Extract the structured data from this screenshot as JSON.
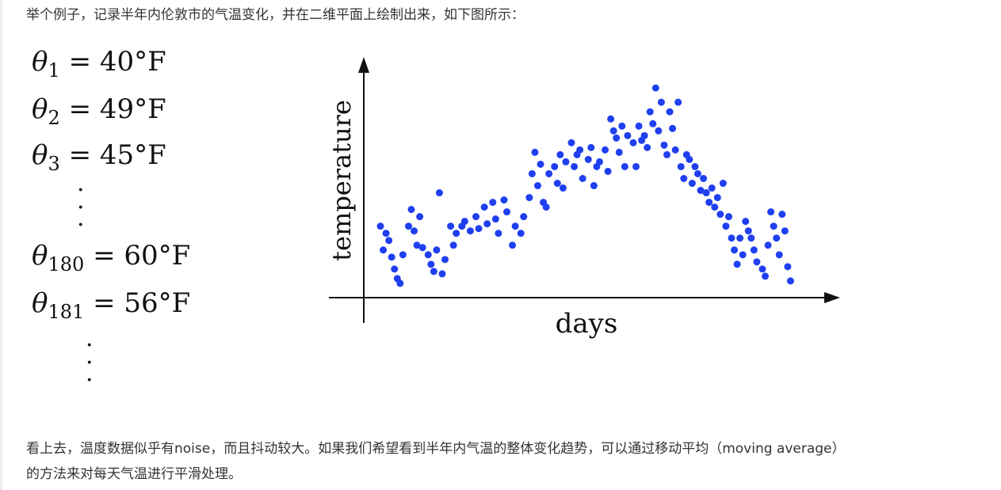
{
  "intro": "举个例子，记录半年内伦敦市的气温变化，并在二维平面上绘制出来，如下图所示：",
  "equations": [
    {
      "symbol": "θ",
      "sub": "1",
      "rhs": "= 40°F"
    },
    {
      "symbol": "θ",
      "sub": "2",
      "rhs": "= 49°F"
    },
    {
      "symbol": "θ",
      "sub": "3",
      "rhs": "= 45°F"
    },
    {
      "symbol": "θ",
      "sub": "180",
      "rhs": "= 60°F"
    },
    {
      "symbol": "θ",
      "sub": "181",
      "rhs": "= 56°F"
    }
  ],
  "figure": {
    "type": "scatter",
    "xlabel": "days",
    "ylabel": "temperature",
    "color": "#1f3ff0",
    "xlim": [
      -6,
      163
    ],
    "ylim": [
      0,
      100
    ],
    "x": [
      0,
      1,
      2,
      3,
      4,
      5,
      6,
      7,
      8,
      10,
      11,
      12,
      13,
      14,
      15,
      17,
      18,
      19,
      20,
      21,
      22,
      23,
      25,
      26,
      27,
      29,
      30,
      32,
      34,
      35,
      37,
      38,
      40,
      41,
      42,
      44,
      45,
      47,
      48,
      50,
      51,
      53,
      54,
      55,
      56,
      57,
      58,
      59,
      60,
      62,
      63,
      64,
      65,
      66,
      68,
      69,
      70,
      71,
      72,
      74,
      75,
      76,
      77,
      78,
      80,
      81,
      82,
      83,
      84,
      85,
      86,
      87,
      88,
      90,
      91,
      92,
      93,
      94,
      95,
      96,
      97,
      98,
      99,
      100,
      101,
      102,
      103,
      104,
      105,
      106,
      107,
      108,
      109,
      110,
      111,
      112,
      113,
      114,
      115,
      116,
      117,
      118,
      119,
      120,
      121,
      122,
      123,
      124,
      125,
      126,
      127,
      128,
      129,
      130,
      131,
      132,
      133,
      134,
      136,
      137,
      138,
      139,
      140,
      141,
      142,
      143,
      144,
      145,
      146
    ],
    "y": [
      30,
      20,
      27,
      24,
      17,
      12,
      8,
      6,
      18,
      30,
      37,
      28,
      22,
      34,
      21,
      18,
      14,
      11,
      20,
      44,
      10,
      16,
      30,
      22,
      27,
      30,
      32,
      28,
      34,
      29,
      38,
      31,
      40,
      33,
      27,
      41,
      36,
      22,
      30,
      27,
      34,
      42,
      52,
      61,
      47,
      56,
      40,
      38,
      52,
      55,
      48,
      60,
      46,
      57,
      65,
      55,
      60,
      62,
      50,
      58,
      63,
      47,
      55,
      57,
      62,
      53,
      75,
      70,
      67,
      61,
      72,
      55,
      68,
      65,
      55,
      72,
      66,
      68,
      63,
      78,
      73,
      88,
      70,
      82,
      64,
      60,
      78,
      71,
      62,
      82,
      55,
      50,
      60,
      58,
      48,
      55,
      52,
      45,
      50,
      44,
      40,
      46,
      38,
      42,
      35,
      48,
      30,
      34,
      25,
      20,
      14,
      25,
      18,
      32,
      28,
      25,
      20,
      15,
      12,
      9,
      22,
      36,
      30,
      25,
      18,
      35,
      28,
      13,
      7
    ]
  },
  "after": [
    "看上去，温度数据似乎有noise，而且抖动较大。如果我们希望看到半年内气温的整体变化趋势，可以通过移动平均（moving average）",
    "的方法来对每天气温进行平滑处理。"
  ]
}
